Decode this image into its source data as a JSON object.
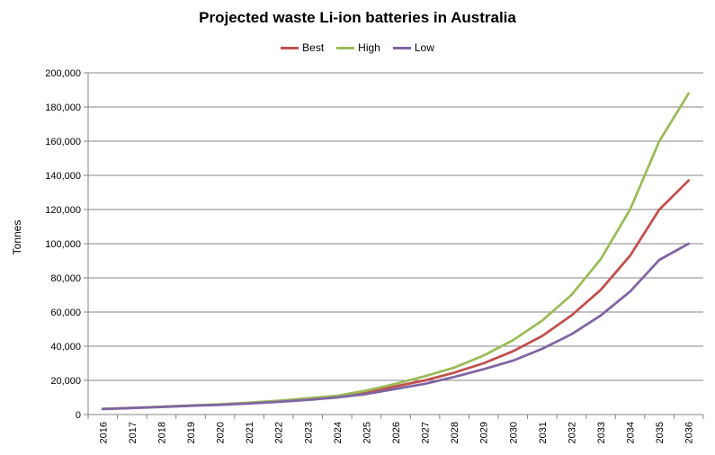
{
  "chart_data": {
    "type": "line",
    "title": "Projected waste Li-ion batteries in Australia",
    "xlabel": "",
    "ylabel": "Tonnes",
    "ylim": [
      0,
      200000
    ],
    "yticks": [
      0,
      20000,
      40000,
      60000,
      80000,
      100000,
      120000,
      140000,
      160000,
      180000,
      200000
    ],
    "ytick_labels": [
      "0",
      "20,000",
      "40,000",
      "60,000",
      "80,000",
      "100,000",
      "120,000",
      "140,000",
      "160,000",
      "180,000",
      "200,000"
    ],
    "categories": [
      "2016",
      "2017",
      "2018",
      "2019",
      "2020",
      "2021",
      "2022",
      "2023",
      "2024",
      "2025",
      "2026",
      "2027",
      "2028",
      "2029",
      "2030",
      "2031",
      "2032",
      "2033",
      "2034",
      "2035",
      "2036"
    ],
    "grid": "horizontal",
    "legend_position": "top-center",
    "series": [
      {
        "name": "Best",
        "color": "#c0504d",
        "values": [
          3300,
          3900,
          4500,
          5200,
          5900,
          6700,
          7800,
          9000,
          10500,
          13000,
          16500,
          20000,
          24500,
          30000,
          37000,
          46000,
          58000,
          73000,
          93000,
          120000,
          137000
        ]
      },
      {
        "name": "High",
        "color": "#9bbb59",
        "values": [
          3300,
          3900,
          4500,
          5300,
          6000,
          7000,
          8100,
          9500,
          11000,
          14000,
          18000,
          22500,
          27500,
          34500,
          43500,
          55000,
          70000,
          91000,
          120000,
          160000,
          188000
        ]
      },
      {
        "name": "Low",
        "color": "#8064a2",
        "values": [
          3200,
          3800,
          4400,
          5100,
          5700,
          6400,
          7400,
          8600,
          10000,
          12000,
          15000,
          18000,
          22000,
          26500,
          31500,
          38500,
          47000,
          58000,
          72000,
          90500,
          100000
        ]
      }
    ]
  }
}
